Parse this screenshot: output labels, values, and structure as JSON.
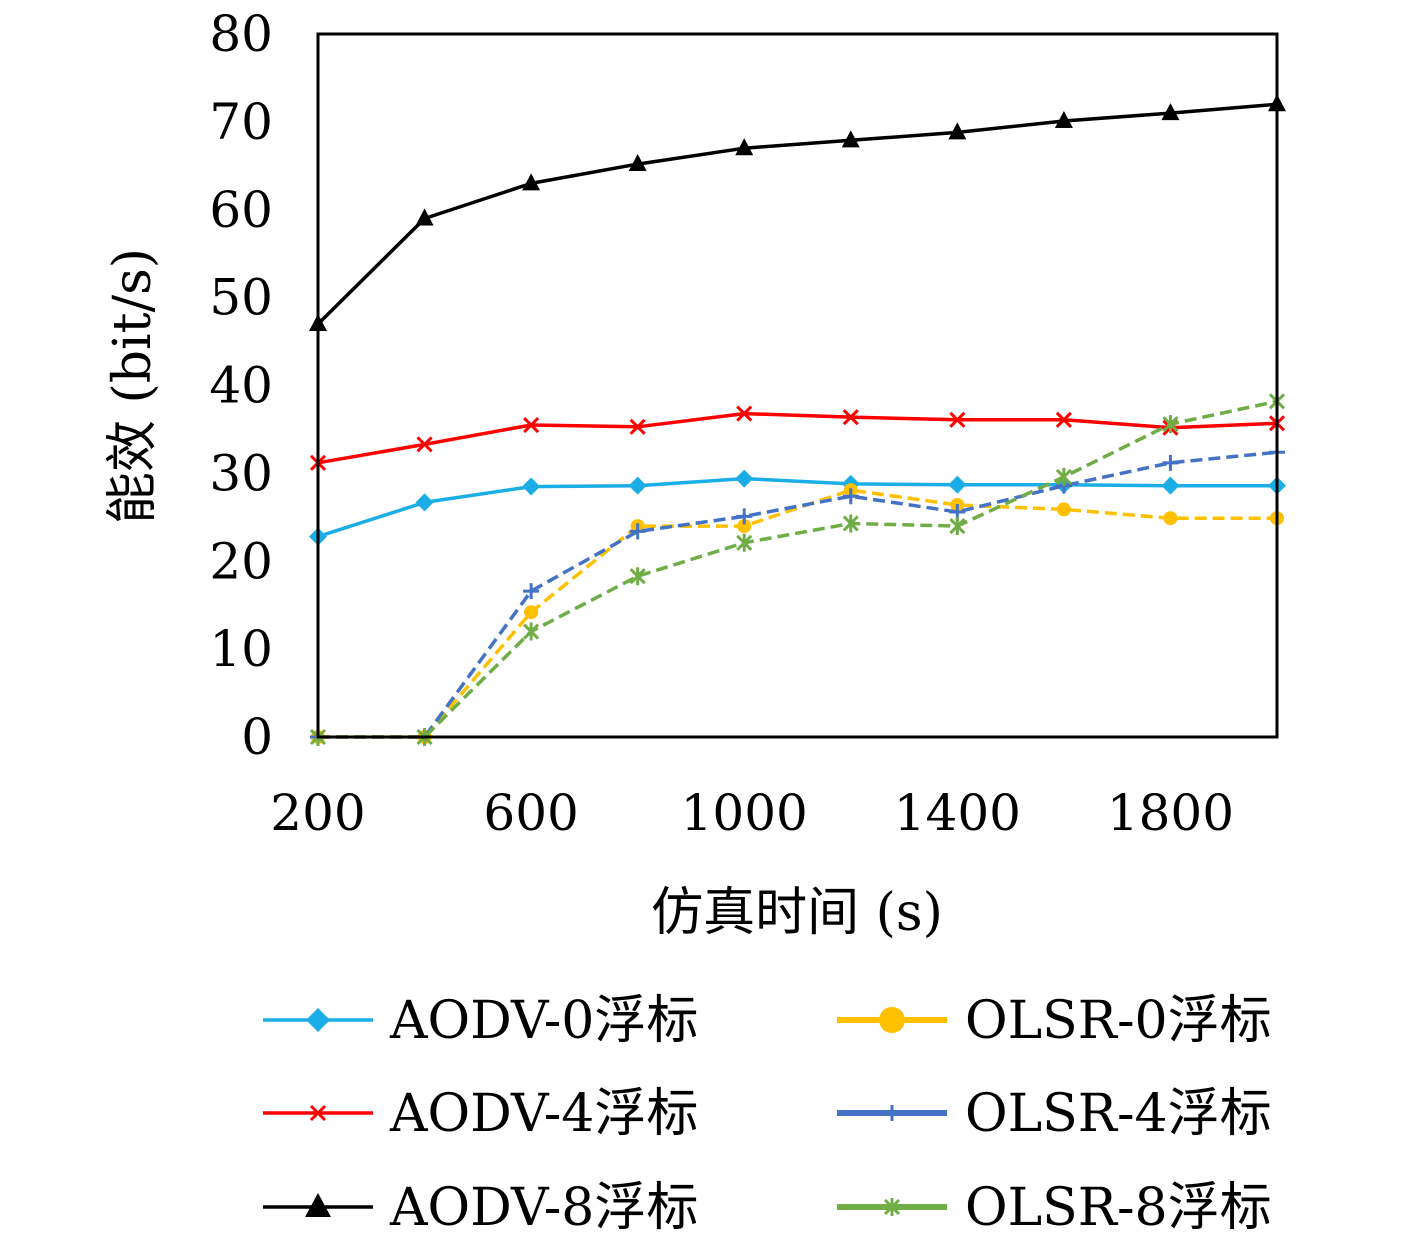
{
  "chart_data": {
    "type": "line",
    "title": "",
    "xlabel": "仿真时间 (s)",
    "ylabel": "能效 (bit/s)",
    "x": [
      200,
      400,
      600,
      800,
      1000,
      1200,
      1400,
      1600,
      1800,
      2000
    ],
    "x_tick_labels": [
      "200",
      "600",
      "1000",
      "1400",
      "1800"
    ],
    "x_tick_values": [
      200,
      600,
      1000,
      1400,
      1800
    ],
    "xlim": [
      200,
      2000
    ],
    "y_tick_labels": [
      "0",
      "10",
      "20",
      "30",
      "40",
      "50",
      "60",
      "70",
      "80"
    ],
    "ylim": [
      0,
      80
    ],
    "grid": false,
    "legend_position": "bottom",
    "series": [
      {
        "name": "AODV-0浮标",
        "color": "#1aade6",
        "marker": "diamond",
        "dash": "solid",
        "values": [
          22.8,
          26.7,
          28.5,
          28.6,
          29.4,
          28.8,
          28.7,
          28.7,
          28.6,
          28.6
        ]
      },
      {
        "name": "AODV-4浮标",
        "color": "#ff0000",
        "marker": "x",
        "dash": "solid",
        "values": [
          31.2,
          33.3,
          35.5,
          35.3,
          36.8,
          36.4,
          36.1,
          36.1,
          35.2,
          35.7
        ]
      },
      {
        "name": "AODV-8浮标",
        "color": "#000000",
        "marker": "triangle",
        "dash": "solid",
        "values": [
          47.0,
          59.0,
          63.0,
          65.2,
          67.0,
          67.9,
          68.8,
          70.1,
          71.0,
          72.0
        ]
      },
      {
        "name": "OLSR-0浮标",
        "color": "#ffc000",
        "marker": "circle",
        "dash": "dashed",
        "values": [
          0,
          0,
          14.2,
          24.0,
          24.0,
          28.1,
          26.4,
          25.9,
          24.9,
          24.9
        ]
      },
      {
        "name": "OLSR-4浮标",
        "color": "#4472c4",
        "marker": "plus",
        "dash": "dashed",
        "values": [
          0,
          0,
          16.6,
          23.4,
          25.1,
          27.4,
          25.6,
          28.6,
          31.2,
          32.4
        ]
      },
      {
        "name": "OLSR-8浮标",
        "color": "#70ad47",
        "marker": "star",
        "dash": "dashed",
        "values": [
          0,
          0,
          12.0,
          18.3,
          22.1,
          24.3,
          24.0,
          29.6,
          35.6,
          38.2
        ]
      }
    ]
  }
}
